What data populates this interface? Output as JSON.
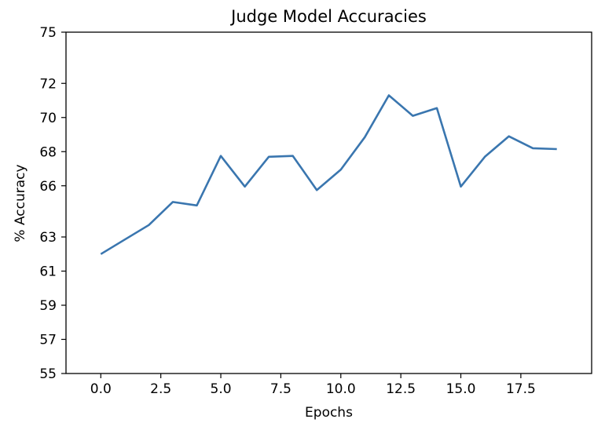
{
  "chart_data": {
    "type": "line",
    "title": "Judge Model Accuracies",
    "xlabel": "Epochs",
    "ylabel": "% Accuracy",
    "xlim": [
      -1.45,
      20.45
    ],
    "ylim": [
      55,
      75
    ],
    "x_ticks": [
      0.0,
      2.5,
      5.0,
      7.5,
      10.0,
      12.5,
      15.0,
      17.5
    ],
    "x_tick_labels": [
      "0.0",
      "2.5",
      "5.0",
      "7.5",
      "10.0",
      "12.5",
      "15.0",
      "17.5"
    ],
    "y_ticks": [
      55,
      57,
      59,
      61,
      63,
      66,
      68,
      70,
      72,
      75
    ],
    "y_tick_labels": [
      "55",
      "57",
      "59",
      "61",
      "63",
      "66",
      "68",
      "70",
      "72",
      "75"
    ],
    "grid": false,
    "series": [
      {
        "color": "#3a76af",
        "x": [
          0,
          1,
          2,
          3,
          4,
          5,
          6,
          7,
          8,
          9,
          10,
          11,
          12,
          13,
          14,
          15,
          16,
          17,
          18,
          19
        ],
        "y": [
          62.0,
          62.85,
          63.7,
          65.05,
          64.85,
          67.75,
          65.95,
          67.7,
          67.75,
          65.75,
          66.95,
          68.85,
          71.3,
          70.1,
          70.55,
          65.95,
          67.7,
          68.9,
          68.2,
          68.15
        ]
      }
    ]
  }
}
